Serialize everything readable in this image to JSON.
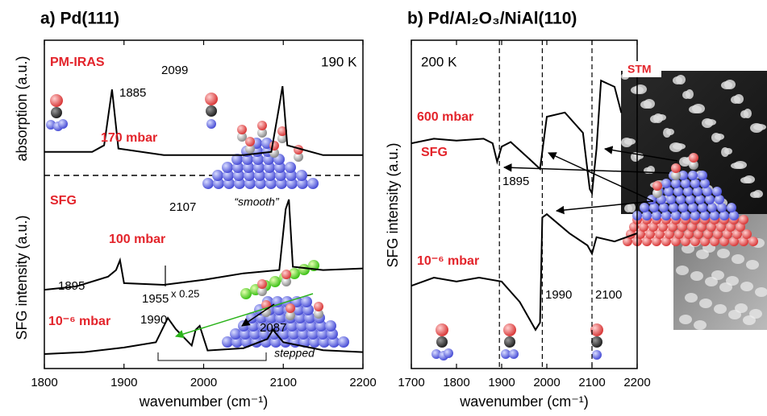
{
  "chart_data": [
    {
      "type": "line",
      "title": "a) Pd(111)",
      "xlabel": "wavenumber (cm⁻¹)",
      "ylabels": [
        "absorption (a.u.)",
        "SFG intensity (a.u.)"
      ],
      "labels": [
        "PM-IRAS",
        "190 K",
        "SFG"
      ],
      "illustration_labels": [
        "“smooth”",
        "stepped"
      ],
      "scale_note": "x 0.25",
      "xlim": [
        1800,
        2200
      ],
      "xticks": [
        1800,
        1900,
        2000,
        2100,
        2200
      ],
      "ylim": [
        0,
        100
      ],
      "color": "#000000",
      "label_color": "#e3242b",
      "series": [
        {
          "name": "170 mbar",
          "x": [
            1800,
            1860,
            1875,
            1885,
            1893,
            1950,
            2000,
            2050,
            2085,
            2095,
            2099,
            2105,
            2150,
            2200
          ],
          "values": [
            66,
            66,
            68,
            85,
            67,
            65,
            65,
            65,
            66,
            80,
            86,
            68,
            65,
            65
          ]
        },
        {
          "name": "100 mbar",
          "x": [
            1800,
            1840,
            1880,
            1890,
            1895,
            1900,
            1950,
            2000,
            2050,
            2095,
            2103,
            2107,
            2112,
            2150,
            2200
          ],
          "values": [
            24,
            25,
            28,
            30,
            33,
            26,
            25.5,
            27,
            29,
            30,
            48.5,
            51.5,
            31,
            30,
            30.5
          ]
        },
        {
          "name": "10⁻⁶ mbar",
          "x": [
            1800,
            1850,
            1900,
            1940,
            1955,
            1965,
            1985,
            1990,
            1995,
            2005,
            2050,
            2080,
            2087,
            2100,
            2150,
            2200
          ],
          "values": [
            4.4,
            5,
            6.4,
            8,
            15.4,
            12,
            7,
            11.8,
            13,
            5.5,
            6.2,
            9,
            11.8,
            8,
            5.6,
            5
          ]
        }
      ],
      "peaks": [
        1885,
        2099,
        1895,
        2107,
        1955,
        1990,
        2087
      ]
    },
    {
      "type": "line",
      "title": "b) Pd/Al₂O₃/NiAl(110)",
      "xlabel": "wavenumber (cm⁻¹)",
      "ylabel": "SFG intensity (a.u.)",
      "labels": [
        "200 K",
        "SFG",
        "STM"
      ],
      "xlim": [
        1700,
        2200
      ],
      "xticks": [
        1700,
        1800,
        1900,
        2000,
        2100,
        2200
      ],
      "ylim": [
        0,
        100
      ],
      "color": "#000000",
      "label_color": "#e3242b",
      "series": [
        {
          "name": "600 mbar",
          "x": [
            1700,
            1750,
            1800,
            1860,
            1880,
            1890,
            1900,
            1920,
            1960,
            1985,
            2000,
            2040,
            2080,
            2095,
            2100,
            2110,
            2120,
            2150,
            2165
          ],
          "values": [
            68.6,
            70,
            69.4,
            70,
            68.6,
            63,
            67.6,
            69,
            64,
            60.8,
            76.7,
            78,
            71.8,
            54.7,
            53.4,
            66.9,
            87.7,
            85.8,
            77.9
          ]
        },
        {
          "name": "10⁻⁶ mbar",
          "x": [
            1700,
            1750,
            1800,
            1850,
            1900,
            1940,
            1975,
            1985,
            1990,
            2000,
            2050,
            2090,
            2100,
            2110,
            2150,
            2200
          ],
          "values": [
            25.2,
            27.7,
            26.5,
            27.7,
            26.5,
            20.3,
            11.8,
            14,
            46,
            47,
            41.2,
            37.5,
            35,
            40,
            38.7,
            41.2
          ]
        }
      ],
      "markers": [
        1895,
        1990,
        2100
      ]
    }
  ]
}
